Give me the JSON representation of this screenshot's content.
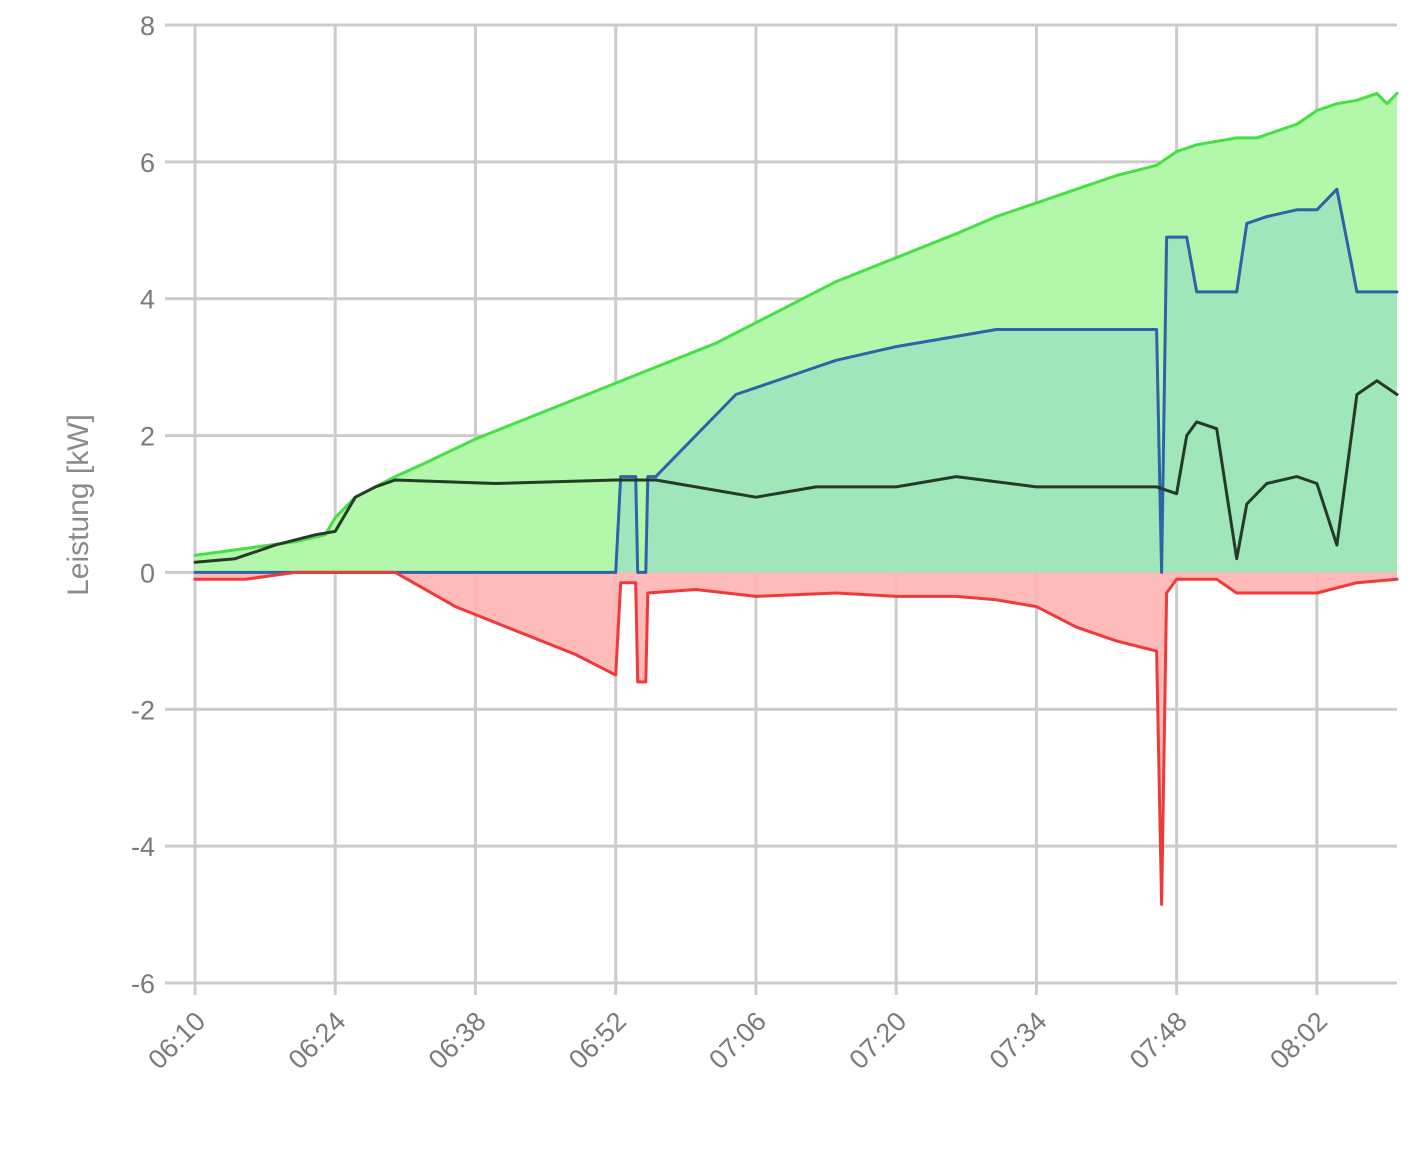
{
  "chart_data": {
    "type": "area",
    "title": "",
    "xlabel": "",
    "ylabel": "Leistung [kW]",
    "ylim": [
      -6,
      8
    ],
    "yticks": [
      "8",
      "6",
      "4",
      "2",
      "0",
      "-2",
      "-4",
      "-6"
    ],
    "xlim": [
      "06:10",
      "08:10"
    ],
    "xticks": [
      "06:10",
      "06:24",
      "06:38",
      "06:52",
      "07:06",
      "07:20",
      "07:34",
      "07:48",
      "08:02"
    ],
    "grid": true,
    "legend": "none",
    "series": [
      {
        "color": "#44e044",
        "fill": "#b3f7ab",
        "x": [
          "06:10",
          "06:15",
          "06:20",
          "06:23",
          "06:24",
          "06:26",
          "06:28",
          "06:30",
          "06:33",
          "06:38",
          "06:44",
          "06:50",
          "06:56",
          "07:02",
          "07:08",
          "07:14",
          "07:20",
          "07:26",
          "07:30",
          "07:34",
          "07:38",
          "07:42",
          "07:46",
          "07:48",
          "07:50",
          "07:52",
          "07:54",
          "07:56",
          "07:58",
          "08:00",
          "08:02",
          "08:04",
          "08:06",
          "08:08",
          "08:09",
          "08:10"
        ],
        "values": [
          0.25,
          0.35,
          0.45,
          0.55,
          0.8,
          1.1,
          1.25,
          1.4,
          1.6,
          1.95,
          2.3,
          2.65,
          3.0,
          3.35,
          3.8,
          4.25,
          4.6,
          4.95,
          5.2,
          5.4,
          5.6,
          5.8,
          5.95,
          6.15,
          6.25,
          6.3,
          6.35,
          6.35,
          6.45,
          6.55,
          6.75,
          6.85,
          6.9,
          7.0,
          6.85,
          7.0
        ]
      },
      {
        "color": "#2f62a8",
        "fill": "#9de3bd",
        "x": [
          "06:10",
          "06:52",
          "06:52.5",
          "06:54",
          "06:54.2",
          "06:55",
          "06:55.2",
          "06:56",
          "06:58",
          "07:00",
          "07:02",
          "07:04",
          "07:06",
          "07:10",
          "07:14",
          "07:20",
          "07:26",
          "07:30",
          "07:34",
          "07:38",
          "07:46",
          "07:46.5",
          "07:47",
          "07:49",
          "07:50",
          "07:54",
          "07:55",
          "07:57",
          "08:00",
          "08:02",
          "08:04",
          "08:06",
          "08:10"
        ],
        "values": [
          0,
          0,
          1.4,
          1.4,
          0,
          0,
          1.4,
          1.4,
          1.7,
          2.0,
          2.3,
          2.6,
          2.7,
          2.9,
          3.1,
          3.3,
          3.45,
          3.55,
          3.55,
          3.55,
          3.55,
          0,
          4.9,
          4.9,
          4.1,
          4.1,
          5.1,
          5.2,
          5.3,
          5.3,
          5.6,
          4.1,
          4.1
        ]
      },
      {
        "color": "#263a2a",
        "fill": "none",
        "x": [
          "06:10",
          "06:14",
          "06:18",
          "06:22",
          "06:24",
          "06:26",
          "06:28",
          "06:30",
          "06:40",
          "06:52",
          "06:56",
          "07:00",
          "07:06",
          "07:12",
          "07:20",
          "07:26",
          "07:34",
          "07:40",
          "07:46",
          "07:48",
          "07:49",
          "07:50",
          "07:52",
          "07:54",
          "07:55",
          "07:57",
          "08:00",
          "08:02",
          "08:04",
          "08:06",
          "08:08",
          "08:10"
        ],
        "values": [
          0.15,
          0.2,
          0.4,
          0.55,
          0.6,
          1.1,
          1.25,
          1.35,
          1.3,
          1.35,
          1.35,
          1.25,
          1.1,
          1.25,
          1.25,
          1.4,
          1.25,
          1.25,
          1.25,
          1.15,
          2.0,
          2.2,
          2.1,
          0.2,
          1.0,
          1.3,
          1.4,
          1.3,
          0.4,
          2.6,
          2.8,
          2.6
        ]
      },
      {
        "color": "#ef3a3a",
        "fill": "#ffb3b3",
        "x": [
          "06:10",
          "06:15",
          "06:20",
          "06:25",
          "06:30",
          "06:36",
          "06:42",
          "06:48",
          "06:52",
          "06:52.5",
          "06:54",
          "06:54.2",
          "06:55",
          "06:55.2",
          "07:00",
          "07:06",
          "07:14",
          "07:20",
          "07:26",
          "07:30",
          "07:34",
          "07:38",
          "07:42",
          "07:46",
          "07:46.5",
          "07:47",
          "07:48",
          "07:50",
          "07:52",
          "07:54",
          "07:58",
          "08:02",
          "08:06",
          "08:10"
        ],
        "values": [
          -0.1,
          -0.1,
          0,
          0,
          0,
          -0.5,
          -0.85,
          -1.2,
          -1.5,
          -0.15,
          -0.15,
          -1.6,
          -1.6,
          -0.3,
          -0.25,
          -0.35,
          -0.3,
          -0.35,
          -0.35,
          -0.4,
          -0.5,
          -0.8,
          -1.0,
          -1.15,
          -4.85,
          -0.3,
          -0.1,
          -0.1,
          -0.1,
          -0.3,
          -0.3,
          -0.3,
          -0.15,
          -0.1
        ]
      }
    ]
  }
}
